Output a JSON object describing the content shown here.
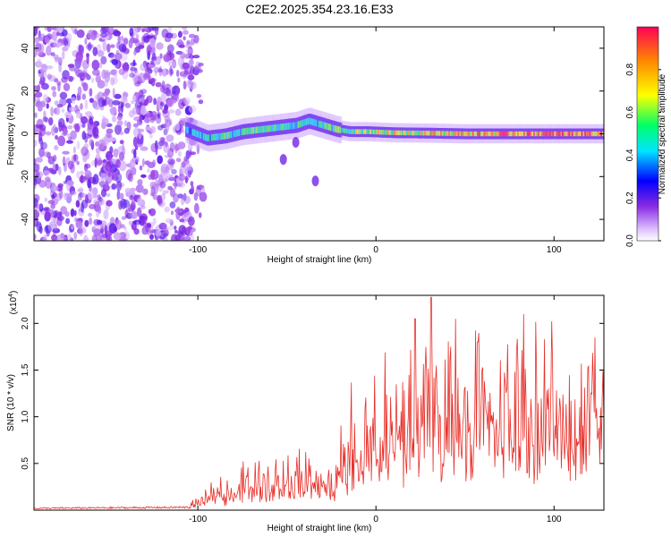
{
  "figure": {
    "title": "C2E2.2025.354.23.16.E33"
  },
  "chart_data": [
    {
      "type": "heatmap",
      "name": "spectrogram",
      "xlabel": "Height of straight line (km)",
      "ylabel": "Frequency (Hz)",
      "xlim": [
        -192,
        128
      ],
      "ylim": [
        -50,
        50
      ],
      "xticks": [
        -100,
        0,
        100
      ],
      "yticks": [
        -40,
        -20,
        0,
        20,
        40
      ],
      "colorbar": {
        "label": "Normalized spectral amplitude",
        "range": [
          0,
          1
        ],
        "ticks": [
          "0.0",
          "0.2",
          "0.4",
          "0.6",
          "0.8"
        ],
        "tick_values": [
          0.0,
          0.2,
          0.4,
          0.6,
          0.8
        ]
      },
      "noise_region_x": [
        -192,
        -103
      ],
      "signal_track": {
        "x": [
          -107,
          -95,
          -85,
          -75,
          -65,
          -55,
          -45,
          -38,
          -30,
          -22,
          -15,
          -5,
          10,
          30,
          50,
          70,
          90,
          110,
          128
        ],
        "freq": [
          2,
          -2,
          -1,
          1,
          2,
          3,
          4,
          6,
          4,
          2,
          1,
          1,
          0.5,
          0.3,
          0,
          0,
          0,
          0,
          0
        ],
        "amplitude": [
          0.35,
          0.45,
          0.5,
          0.5,
          0.55,
          0.5,
          0.5,
          0.45,
          0.5,
          0.55,
          0.6,
          0.65,
          0.7,
          0.75,
          0.8,
          0.85,
          0.9,
          0.9,
          0.9
        ]
      },
      "secondary_blobs": [
        {
          "x": -52,
          "freq": -12
        },
        {
          "x": -34,
          "freq": -22
        },
        {
          "x": -45,
          "freq": -4
        }
      ]
    },
    {
      "type": "line",
      "name": "snr",
      "xlabel": "Height of straight line (km)",
      "ylabel": "SNR (10 * v/v)",
      "y_multiplier_label": "(x10",
      "y_multiplier_exp": "4",
      "y_multiplier_close": ")",
      "xlim": [
        -192,
        128
      ],
      "ylim": [
        0,
        2.3
      ],
      "xticks": [
        -100,
        0,
        100
      ],
      "yticks": [
        "0.5",
        "1.0",
        "1.5",
        "2.0"
      ],
      "ytick_values": [
        0.5,
        1.0,
        1.5,
        2.0
      ],
      "color": "#e8302a",
      "series": [
        {
          "name": "SNR",
          "envelope_x": [
            -192,
            -105,
            -100,
            -90,
            -80,
            -70,
            -60,
            -50,
            -40,
            -30,
            -25,
            -20,
            -15,
            -10,
            -5,
            0,
            10,
            20,
            30,
            40,
            50,
            60,
            70,
            80,
            90,
            100,
            110,
            120,
            128
          ],
          "envelope_y": [
            0.02,
            0.03,
            0.08,
            0.15,
            0.2,
            0.25,
            0.27,
            0.3,
            0.3,
            0.28,
            0.2,
            0.45,
            0.5,
            0.55,
            0.62,
            0.7,
            0.75,
            0.85,
            0.95,
            0.9,
            0.9,
            0.85,
            0.85,
            0.85,
            0.85,
            0.85,
            0.85,
            0.9,
            1.0
          ],
          "peaks": [
            {
              "x": 22,
              "y": 2.05
            },
            {
              "x": 31,
              "y": 2.28
            },
            {
              "x": 42,
              "y": 1.75
            },
            {
              "x": 57,
              "y": 1.8
            },
            {
              "x": 79,
              "y": 1.7
            },
            {
              "x": 83,
              "y": 2.1
            },
            {
              "x": 123,
              "y": 1.85
            }
          ]
        }
      ]
    }
  ]
}
